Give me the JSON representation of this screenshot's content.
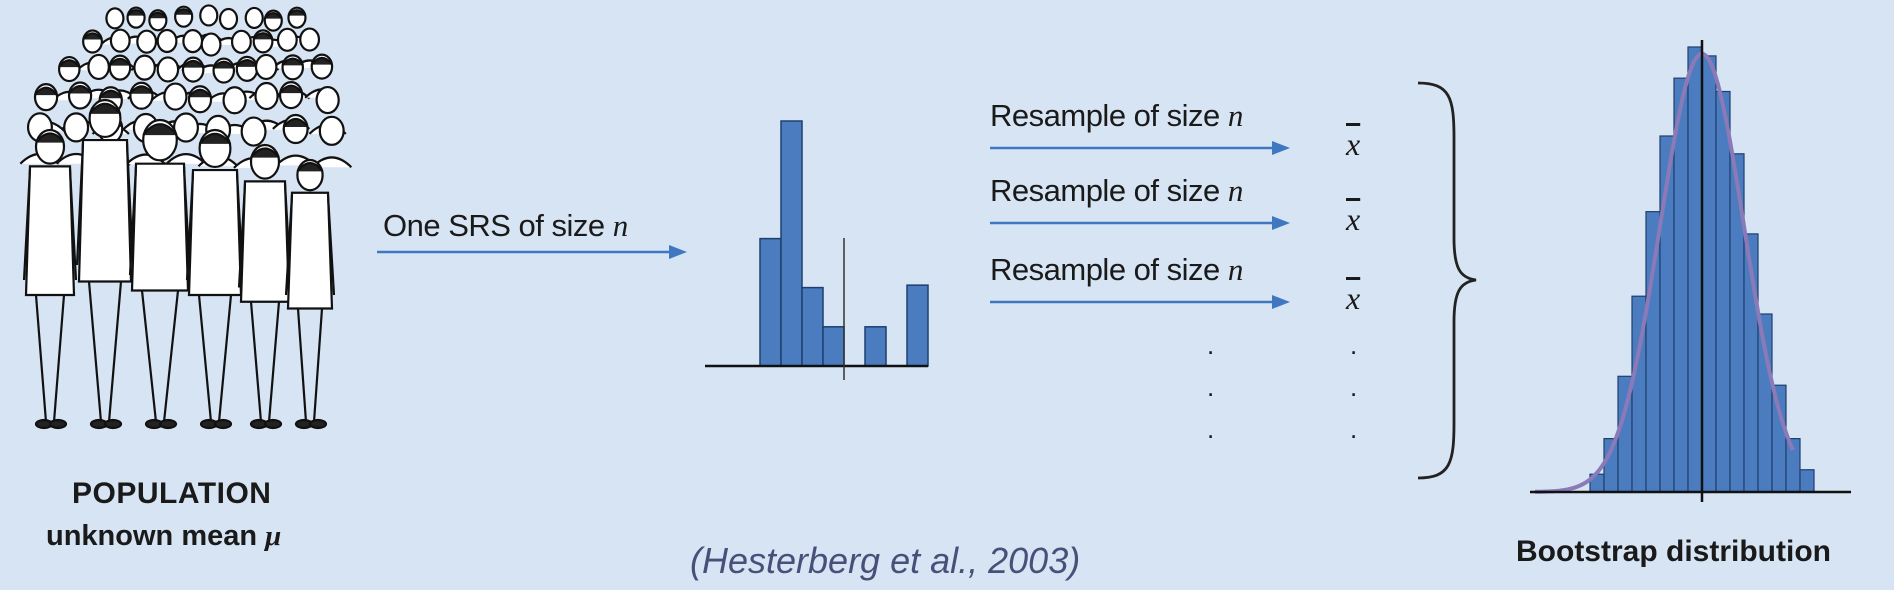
{
  "population": {
    "title": "POPULATION",
    "subtitle_prefix": "unknown mean ",
    "subtitle_symbol": "μ",
    "icon": "crowd-of-people"
  },
  "sample_arrow": {
    "label_prefix": "One SRS of size ",
    "label_var": "n"
  },
  "sample_histogram": {
    "bar_heights": [
      0.52,
      1.0,
      0.32,
      0.16,
      0,
      0.16,
      0,
      0.33
    ],
    "mean_line_fraction": 0.5
  },
  "resamples": [
    {
      "label_prefix": "Resample of size ",
      "label_var": "n",
      "stat": "x"
    },
    {
      "label_prefix": "Resample of size ",
      "label_var": "n",
      "stat": "x"
    },
    {
      "label_prefix": "Resample of size ",
      "label_var": "n",
      "stat": "x"
    }
  ],
  "ellipsis_dot": ".",
  "bootstrap": {
    "title": "Bootstrap distribution",
    "bar_heights": [
      0.04,
      0.12,
      0.26,
      0.44,
      0.63,
      0.8,
      0.93,
      1.0,
      0.98,
      0.9,
      0.76,
      0.58,
      0.4,
      0.24,
      0.12,
      0.05
    ],
    "curve_color": "#8a7ab8"
  },
  "citation": "(Hesterberg et al., 2003)",
  "colors": {
    "background": "#d6e4f3",
    "arrow": "#3f78c0",
    "bar_fill": "#4a7cbf",
    "citation": "#4a4f7a"
  }
}
